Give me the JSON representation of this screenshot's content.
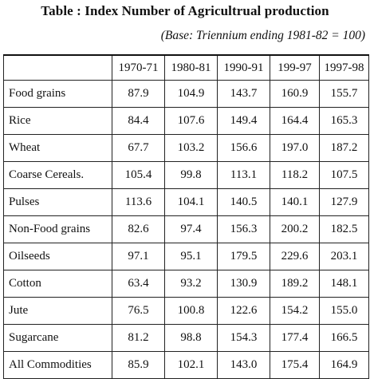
{
  "title": "Table : Index Number of Agricultrual production",
  "subtitle": "(Base: Triennium ending 1981-82 = 100)",
  "columns": [
    "",
    "1970-71",
    "1980-81",
    "1990-91",
    "199-97",
    "1997-98"
  ],
  "rows": [
    {
      "label": "Food grains",
      "values": [
        "87.9",
        "104.9",
        "143.7",
        "160.9",
        "155.7"
      ]
    },
    {
      "label": "Rice",
      "values": [
        "84.4",
        "107.6",
        "149.4",
        "164.4",
        "165.3"
      ]
    },
    {
      "label": "Wheat",
      "values": [
        "67.7",
        "103.2",
        "156.6",
        "197.0",
        "187.2"
      ]
    },
    {
      "label": "Coarse Cereals.",
      "values": [
        "105.4",
        "99.8",
        "113.1",
        "118.2",
        "107.5"
      ]
    },
    {
      "label": "Pulses",
      "values": [
        "113.6",
        "104.1",
        "140.5",
        "140.1",
        "127.9"
      ]
    },
    {
      "label": "Non-Food grains",
      "values": [
        "82.6",
        "97.4",
        "156.3",
        "200.2",
        "182.5"
      ]
    },
    {
      "label": "Oilseeds",
      "values": [
        "97.1",
        "95.1",
        "179.5",
        "229.6",
        "203.1"
      ]
    },
    {
      "label": "Cotton",
      "values": [
        "63.4",
        "93.2",
        "130.9",
        "189.2",
        "148.1"
      ]
    },
    {
      "label": "Jute",
      "values": [
        "76.5",
        "100.8",
        "122.6",
        "154.2",
        "155.0"
      ]
    },
    {
      "label": "Sugarcane",
      "values": [
        "81.2",
        "98.8",
        "154.3",
        "177.4",
        "166.5"
      ]
    },
    {
      "label": "All Commodities",
      "values": [
        "85.9",
        "102.1",
        "143.0",
        "175.4",
        "164.9"
      ]
    }
  ]
}
